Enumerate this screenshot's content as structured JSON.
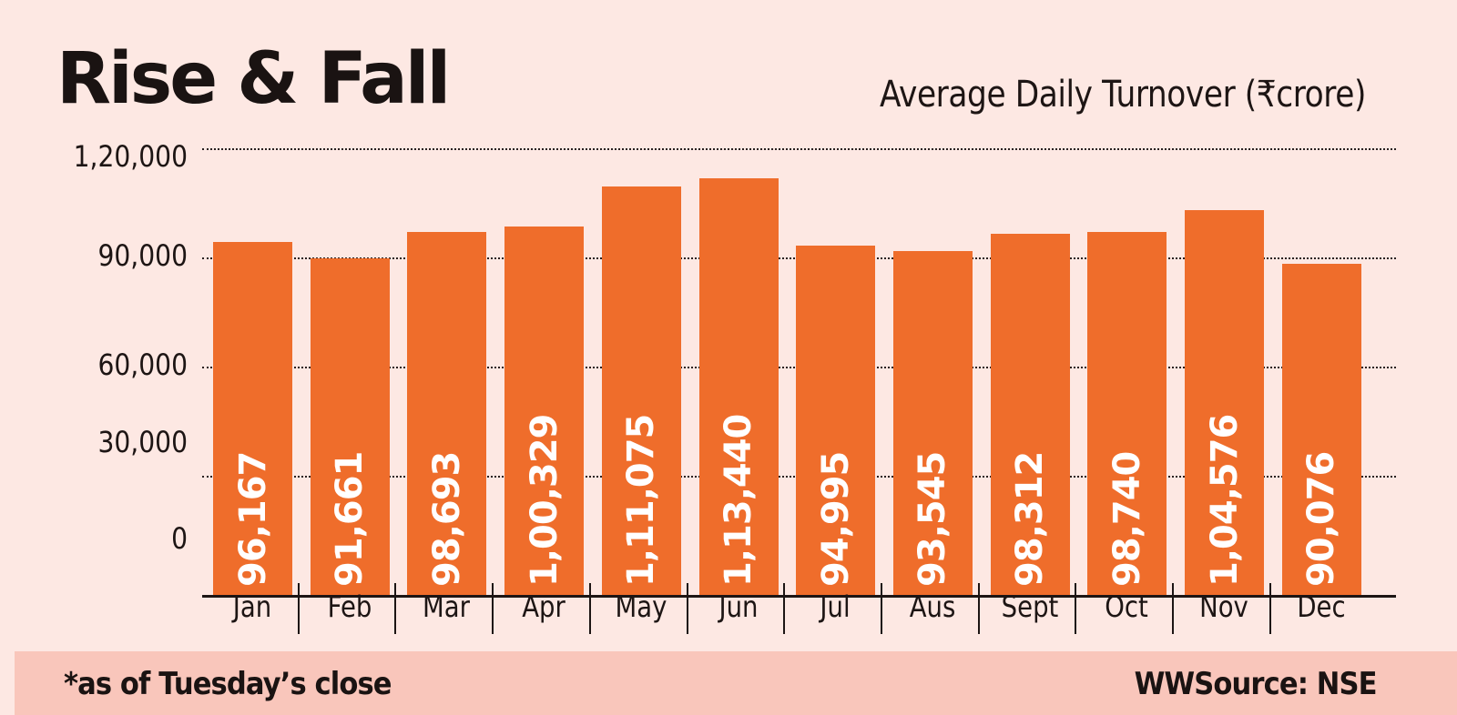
{
  "header": {
    "title": "Rise & Fall",
    "subtitle": "Average Daily Turnover (₹crore)"
  },
  "footer": {
    "note": "*as of Tuesday’s close",
    "source": "WWSource: NSE"
  },
  "colors": {
    "bar": "#ef6d2b",
    "background": "#fde8e3",
    "footer_band": "#f9c6bb",
    "text": "#1d1514"
  },
  "chart_data": {
    "type": "bar",
    "title": "Rise & Fall",
    "subtitle": "Average Daily Turnover (₹crore)",
    "xlabel": "",
    "ylabel": "Average Daily Turnover (₹crore)",
    "categories": [
      "Jan",
      "Feb",
      "Mar",
      "Apr",
      "May",
      "Jun",
      "Jul",
      "Aus",
      "Sept",
      "Oct",
      "Nov",
      "Dec"
    ],
    "values": [
      96167,
      91661,
      98693,
      100329,
      111075,
      113440,
      94995,
      93545,
      98312,
      98740,
      104576,
      90076
    ],
    "value_labels": [
      "96,167",
      "91,661",
      "98,693",
      "1,00,329",
      "1,11,075",
      "1,13,440",
      "94,995",
      "93,545",
      "98,312",
      "98,740",
      "1,04,576",
      "90,076"
    ],
    "yticks": [
      0,
      30000,
      60000,
      90000,
      120000
    ],
    "ytick_labels": [
      "0",
      "30,000",
      "60,000",
      "90,000",
      "1,20,000"
    ],
    "ylim": [
      0,
      120000
    ],
    "grid": true,
    "grid_style": "dotted horizontal",
    "legend": null,
    "annotations": [
      "*as of Tuesday’s close",
      "WWSource: NSE"
    ]
  }
}
